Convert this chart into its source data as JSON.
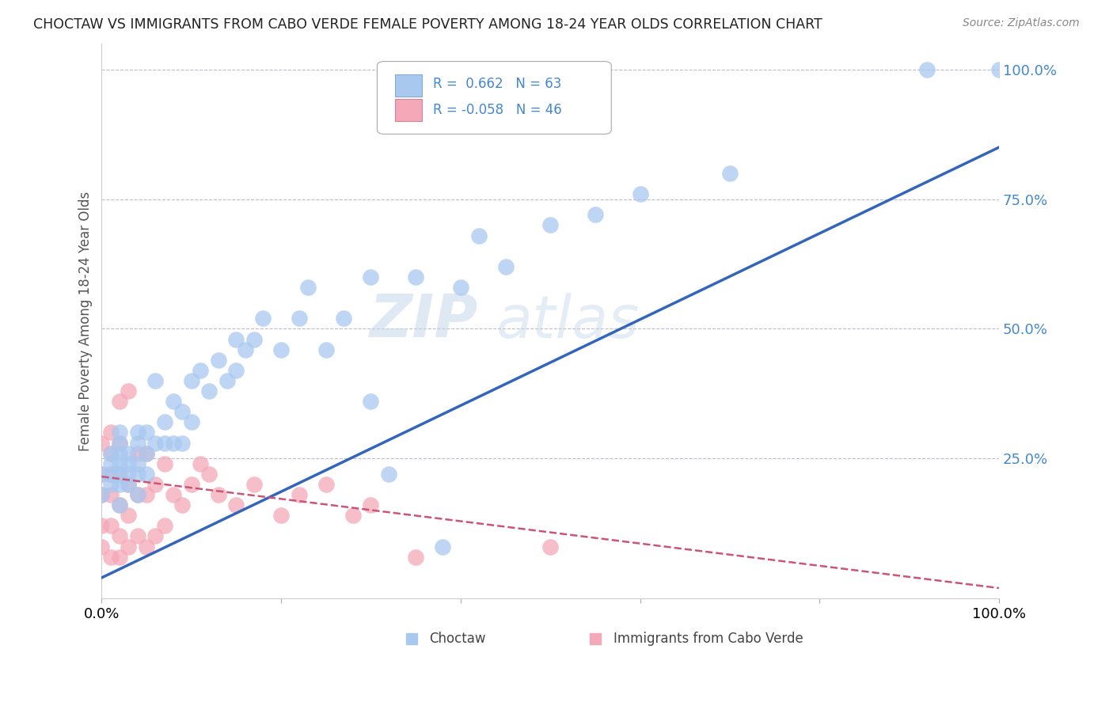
{
  "title": "CHOCTAW VS IMMIGRANTS FROM CABO VERDE FEMALE POVERTY AMONG 18-24 YEAR OLDS CORRELATION CHART",
  "source": "Source: ZipAtlas.com",
  "ylabel": "Female Poverty Among 18-24 Year Olds",
  "watermark": "ZIPatlas",
  "choctaw_color": "#a8c8f0",
  "choctaw_edge_color": "#7aabdd",
  "cabo_verde_color": "#f4a8b8",
  "cabo_verde_edge_color": "#e07090",
  "choctaw_line_color": "#3366bb",
  "cabo_verde_line_color": "#cc5577",
  "choctaw_R": 0.662,
  "choctaw_N": 63,
  "cabo_verde_R": -0.058,
  "cabo_verde_N": 46,
  "grid_color": "#bbbbcc",
  "tick_color": "#4488cc",
  "background_color": "#ffffff",
  "xlim": [
    0,
    1
  ],
  "ylim": [
    -0.02,
    1.05
  ],
  "choctaw_line_x0": 0.0,
  "choctaw_line_y0": 0.02,
  "choctaw_line_x1": 1.0,
  "choctaw_line_y1": 0.85,
  "cabo_line_x0": 0.0,
  "cabo_line_y0": 0.215,
  "cabo_line_x1": 1.0,
  "cabo_line_y1": 0.0,
  "choctaw_x": [
    0.0,
    0.0,
    0.01,
    0.01,
    0.01,
    0.01,
    0.02,
    0.02,
    0.02,
    0.02,
    0.02,
    0.02,
    0.02,
    0.03,
    0.03,
    0.03,
    0.03,
    0.04,
    0.04,
    0.04,
    0.04,
    0.04,
    0.05,
    0.05,
    0.05,
    0.06,
    0.06,
    0.07,
    0.07,
    0.08,
    0.08,
    0.09,
    0.09,
    0.1,
    0.1,
    0.11,
    0.12,
    0.13,
    0.14,
    0.15,
    0.15,
    0.16,
    0.17,
    0.18,
    0.2,
    0.22,
    0.23,
    0.25,
    0.27,
    0.3,
    0.3,
    0.32,
    0.35,
    0.38,
    0.4,
    0.42,
    0.45,
    0.5,
    0.55,
    0.6,
    0.7,
    0.92,
    1.0
  ],
  "choctaw_y": [
    0.18,
    0.22,
    0.2,
    0.22,
    0.24,
    0.26,
    0.16,
    0.2,
    0.22,
    0.24,
    0.26,
    0.28,
    0.3,
    0.2,
    0.22,
    0.24,
    0.26,
    0.18,
    0.22,
    0.24,
    0.28,
    0.3,
    0.22,
    0.26,
    0.3,
    0.28,
    0.4,
    0.28,
    0.32,
    0.28,
    0.36,
    0.28,
    0.34,
    0.32,
    0.4,
    0.42,
    0.38,
    0.44,
    0.4,
    0.42,
    0.48,
    0.46,
    0.48,
    0.52,
    0.46,
    0.52,
    0.58,
    0.46,
    0.52,
    0.36,
    0.6,
    0.22,
    0.6,
    0.08,
    0.58,
    0.68,
    0.62,
    0.7,
    0.72,
    0.76,
    0.8,
    1.0,
    1.0
  ],
  "cabo_verde_x": [
    0.0,
    0.0,
    0.0,
    0.0,
    0.0,
    0.01,
    0.01,
    0.01,
    0.01,
    0.01,
    0.01,
    0.02,
    0.02,
    0.02,
    0.02,
    0.02,
    0.02,
    0.03,
    0.03,
    0.03,
    0.03,
    0.04,
    0.04,
    0.04,
    0.05,
    0.05,
    0.05,
    0.06,
    0.06,
    0.07,
    0.07,
    0.08,
    0.09,
    0.1,
    0.11,
    0.12,
    0.13,
    0.15,
    0.17,
    0.2,
    0.22,
    0.25,
    0.28,
    0.3,
    0.35,
    0.5
  ],
  "cabo_verde_y": [
    0.08,
    0.12,
    0.18,
    0.22,
    0.28,
    0.06,
    0.12,
    0.18,
    0.22,
    0.26,
    0.3,
    0.06,
    0.1,
    0.16,
    0.22,
    0.28,
    0.36,
    0.08,
    0.14,
    0.2,
    0.38,
    0.1,
    0.18,
    0.26,
    0.08,
    0.18,
    0.26,
    0.1,
    0.2,
    0.12,
    0.24,
    0.18,
    0.16,
    0.2,
    0.24,
    0.22,
    0.18,
    0.16,
    0.2,
    0.14,
    0.18,
    0.2,
    0.14,
    0.16,
    0.06,
    0.08
  ]
}
